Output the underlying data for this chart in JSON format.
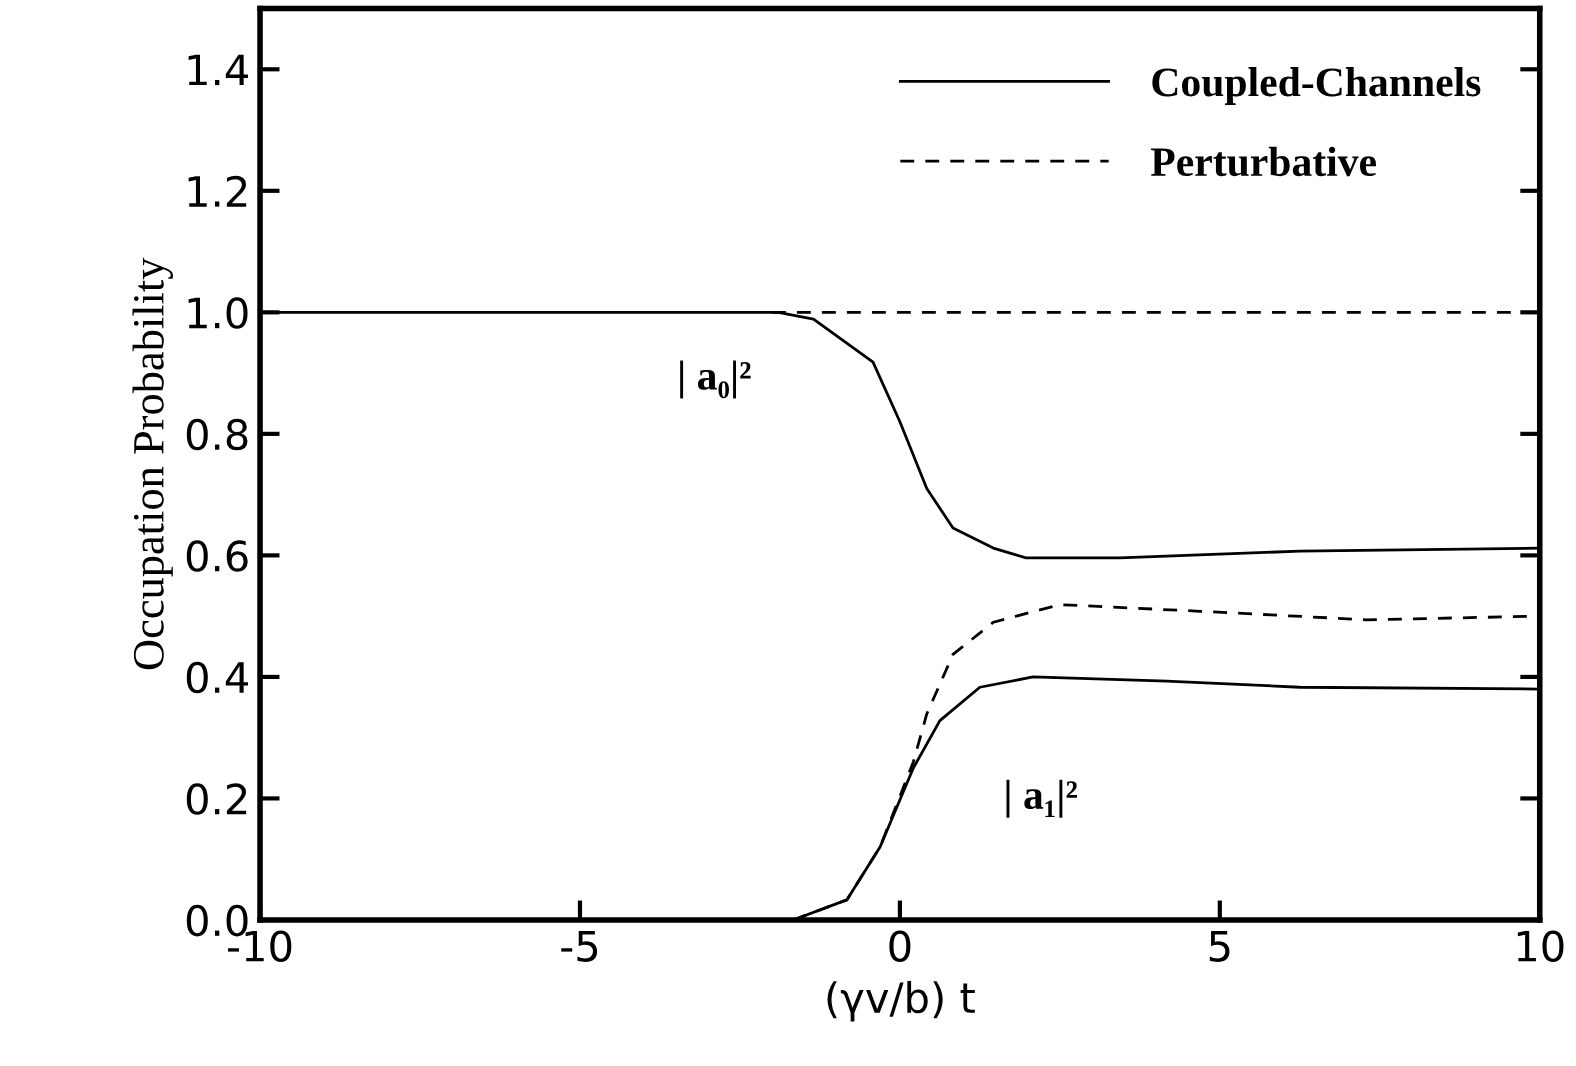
{
  "chart_data": {
    "type": "line",
    "xlabel": "(γv/b) t",
    "ylabel": "Occupation Probability",
    "xlim": [
      -10,
      10
    ],
    "ylim": [
      0,
      1.5
    ],
    "xticks": [
      -10,
      -5,
      0,
      5,
      10
    ],
    "yticks": [
      {
        "value": 0,
        "label": "0.0"
      },
      {
        "value": 0.2,
        "label": "0.2"
      },
      {
        "value": 0.4,
        "label": "0.4"
      },
      {
        "value": 0.6,
        "label": "0.6"
      },
      {
        "value": 0.8,
        "label": "0.8"
      },
      {
        "value": 1.0,
        "label": "1.0"
      },
      {
        "value": 1.2,
        "label": "1.2"
      },
      {
        "value": 1.4,
        "label": "1.4"
      }
    ],
    "grid": false,
    "legend": "top right",
    "marker": "none",
    "series": [
      {
        "name": "Coupled-Channels",
        "color": "#000000",
        "line_style": "solid",
        "x": [
          -10,
          -1.9,
          -1.35,
          -0.42,
          0,
          0.42,
          0.83,
          1.46,
          1.97,
          3.44,
          6.25,
          10
        ],
        "values": [
          1.0,
          1.0,
          0.989,
          0.918,
          0.82,
          0.71,
          0.645,
          0.612,
          0.596,
          0.596,
          0.607,
          0.612
        ]
      },
      {
        "name": "Perturbative",
        "color": "#000000",
        "line_style": "dashed",
        "x": [
          -2,
          10
        ],
        "values": [
          1.0,
          1.0
        ]
      },
      {
        "color": "#000000",
        "line_style": "solid",
        "x": [
          -1.67,
          -0.83,
          -0.31,
          0.21,
          0.625,
          1.25,
          2.08,
          4.17,
          6.25,
          10
        ],
        "values": [
          0,
          0.033,
          0.12,
          0.25,
          0.328,
          0.383,
          0.4,
          0.393,
          0.383,
          0.38
        ]
      },
      {
        "color": "#000000",
        "line_style": "dashed",
        "x": [
          -1.67,
          -0.83,
          -0.31,
          0.21,
          0.42,
          0.83,
          1.46,
          2.5,
          4.69,
          7.3,
          10
        ],
        "values": [
          0,
          0.033,
          0.12,
          0.26,
          0.339,
          0.437,
          0.49,
          0.519,
          0.508,
          0.494,
          0.5
        ]
      }
    ],
    "annotations": [
      "| a₀|²",
      "| a₁|²"
    ]
  }
}
